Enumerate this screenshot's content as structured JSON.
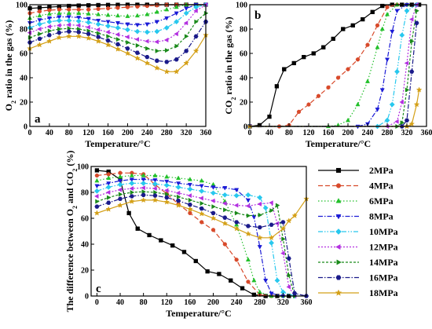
{
  "chart_data": [
    {
      "type": "line",
      "panel_label": "a",
      "xlabel": "Temperature/°C",
      "ylabel_parts": [
        "O",
        "2",
        " ratio in the gas  (%)"
      ],
      "xlim": [
        0,
        360
      ],
      "ylim": [
        0,
        100
      ],
      "xticks": [
        0,
        40,
        80,
        120,
        160,
        200,
        240,
        280,
        320,
        360
      ],
      "yticks": [
        0,
        20,
        40,
        60,
        80,
        100
      ],
      "x": [
        0,
        20,
        40,
        60,
        80,
        100,
        120,
        140,
        160,
        180,
        200,
        220,
        240,
        260,
        280,
        300,
        320,
        340,
        360
      ],
      "series": [
        {
          "name": "2MPa",
          "values": [
            97,
            97.5,
            98,
            98.5,
            99,
            99.3,
            99.5,
            99.7,
            99.8,
            99.9,
            100,
            100,
            100,
            100,
            100,
            100,
            100,
            100,
            100
          ]
        },
        {
          "name": "4MPa",
          "values": [
            93,
            94.5,
            95.5,
            96,
            96,
            96,
            96,
            96.5,
            97,
            97.5,
            98,
            98.5,
            99,
            99.5,
            100,
            100,
            100,
            100,
            100
          ]
        },
        {
          "name": "6MPa",
          "values": [
            89,
            91,
            92.5,
            93,
            93,
            93,
            92.5,
            92,
            91.5,
            91,
            90.5,
            91,
            92,
            94,
            96,
            98,
            100,
            100,
            100
          ]
        },
        {
          "name": "8MPa",
          "values": [
            85,
            87.5,
            89,
            90,
            90,
            89.5,
            88.5,
            87,
            86,
            85,
            84,
            83.5,
            84,
            86,
            89,
            93,
            97,
            100,
            100
          ]
        },
        {
          "name": "10MPa",
          "values": [
            81,
            84,
            86,
            87,
            87,
            86.5,
            85.5,
            84,
            82.5,
            81,
            79.5,
            78,
            77.5,
            78,
            81,
            86,
            93,
            98,
            100
          ]
        },
        {
          "name": "12MPa",
          "values": [
            77,
            80,
            82,
            83,
            83.5,
            83,
            81.5,
            79.5,
            77.5,
            75.5,
            73.5,
            71.5,
            70,
            69.5,
            71,
            76,
            85,
            95,
            100
          ]
        },
        {
          "name": "14MPa",
          "values": [
            73,
            76,
            78.5,
            80,
            80.5,
            80,
            78.5,
            76.5,
            74,
            71.5,
            69,
            66.5,
            64,
            62,
            62.5,
            66,
            74,
            86,
            93
          ]
        },
        {
          "name": "16MPa",
          "values": [
            69,
            72,
            75,
            77,
            78,
            77.5,
            76,
            73.5,
            70.5,
            67.5,
            64,
            60.5,
            57,
            54,
            53,
            55,
            62,
            74,
            86
          ]
        },
        {
          "name": "18MPa",
          "values": [
            64,
            67,
            70,
            73,
            74,
            74,
            72.5,
            70,
            67,
            63.5,
            60,
            56,
            52,
            48,
            45,
            45,
            52,
            62,
            75
          ]
        }
      ]
    },
    {
      "type": "line",
      "panel_label": "b",
      "xlabel": "Temperature/°C",
      "ylabel_parts": [
        "CO",
        "2",
        " ratio in the gas  (%)"
      ],
      "xlim": [
        0,
        360
      ],
      "ylim": [
        0,
        100
      ],
      "xticks": [
        0,
        40,
        80,
        120,
        160,
        200,
        240,
        280,
        320,
        360
      ],
      "yticks": [
        0,
        20,
        40,
        60,
        80,
        100
      ],
      "series": [
        {
          "name": "2MPa",
          "x": [
            0,
            20,
            40,
            55,
            70,
            90,
            110,
            130,
            150,
            170,
            190,
            210,
            230,
            250,
            270,
            290,
            310,
            330,
            345
          ],
          "values": [
            0,
            1,
            8,
            33,
            47,
            52,
            57,
            60,
            65,
            72,
            80,
            83,
            88,
            94,
            99,
            100,
            100,
            100,
            100
          ]
        },
        {
          "name": "4MPa",
          "x": [
            0,
            60,
            80,
            100,
            120,
            140,
            160,
            180,
            200,
            220,
            240,
            260,
            280,
            300,
            320,
            340
          ],
          "values": [
            0,
            0,
            1,
            12,
            18,
            25,
            32,
            40,
            47,
            55,
            67,
            83,
            98,
            100,
            100,
            100
          ]
        },
        {
          "name": "6MPa",
          "x": [
            0,
            160,
            180,
            200,
            220,
            240,
            260,
            270,
            280,
            300,
            320,
            340
          ],
          "values": [
            0,
            0,
            1,
            5,
            18,
            37,
            65,
            80,
            92,
            100,
            100,
            100
          ]
        },
        {
          "name": "8MPa",
          "x": [
            0,
            220,
            240,
            260,
            270,
            280,
            290,
            300,
            320,
            340
          ],
          "values": [
            0,
            0,
            2,
            14,
            30,
            55,
            78,
            95,
            100,
            100
          ]
        },
        {
          "name": "10MPa",
          "x": [
            0,
            260,
            280,
            290,
            300,
            310,
            320,
            340
          ],
          "values": [
            0,
            0,
            5,
            18,
            45,
            75,
            95,
            100
          ]
        },
        {
          "name": "12MPa",
          "x": [
            0,
            280,
            300,
            310,
            320,
            330,
            340
          ],
          "values": [
            0,
            0,
            4,
            20,
            52,
            88,
            100
          ]
        },
        {
          "name": "14MPa",
          "x": [
            0,
            300,
            310,
            320,
            330,
            340
          ],
          "values": [
            0,
            0,
            3,
            30,
            70,
            95
          ]
        },
        {
          "name": "16MPa",
          "x": [
            0,
            310,
            320,
            330,
            340
          ],
          "values": [
            0,
            0,
            5,
            45,
            85
          ]
        },
        {
          "name": "18MPa",
          "x": [
            0,
            320,
            330,
            340,
            345
          ],
          "values": [
            0,
            0,
            2,
            18,
            30
          ]
        }
      ]
    },
    {
      "type": "line",
      "panel_label": "c",
      "xlabel": "Temperature/°C",
      "ylabel_parts": [
        "The difference between O",
        "2",
        " and CO",
        "2",
        " (%)"
      ],
      "xlim": [
        -10,
        360
      ],
      "ylim": [
        0,
        100
      ],
      "xticks": [
        0,
        40,
        80,
        120,
        160,
        200,
        240,
        280,
        320,
        360
      ],
      "yticks": [
        0,
        20,
        40,
        60,
        80,
        100
      ],
      "series": [
        {
          "name": "2MPa",
          "x": [
            0,
            20,
            40,
            55,
            70,
            90,
            110,
            130,
            150,
            170,
            190,
            210,
            230,
            250,
            270,
            290,
            310,
            330
          ],
          "values": [
            97,
            96,
            90,
            64,
            52,
            47,
            43,
            39,
            34,
            27,
            19,
            17,
            12,
            6,
            1,
            0,
            0,
            0
          ]
        },
        {
          "name": "4MPa",
          "x": [
            0,
            20,
            40,
            60,
            80,
            100,
            120,
            140,
            160,
            180,
            200,
            220,
            240,
            260,
            280,
            300
          ],
          "values": [
            93,
            94,
            95,
            95,
            94,
            86,
            79,
            71,
            64,
            57,
            51,
            40,
            28,
            11,
            1,
            0
          ]
        },
        {
          "name": "6MPa",
          "x": [
            0,
            20,
            40,
            60,
            80,
            100,
            120,
            140,
            160,
            180,
            200,
            220,
            240,
            260,
            270,
            280,
            300,
            320
          ],
          "values": [
            89,
            91,
            92,
            93,
            93,
            93,
            92,
            91,
            90,
            89,
            86,
            73,
            55,
            28,
            12,
            3,
            0,
            0
          ]
        },
        {
          "name": "8MPa",
          "x": [
            0,
            20,
            40,
            60,
            80,
            100,
            120,
            140,
            160,
            180,
            200,
            220,
            240,
            260,
            270,
            280,
            290,
            300,
            320
          ],
          "values": [
            85,
            87,
            89,
            90,
            90,
            89.5,
            88.5,
            87,
            86,
            85,
            84,
            83.5,
            82,
            74,
            61,
            38,
            12,
            2,
            0
          ]
        },
        {
          "name": "10MPa",
          "x": [
            0,
            20,
            40,
            60,
            80,
            100,
            120,
            140,
            160,
            180,
            200,
            220,
            240,
            260,
            280,
            290,
            300,
            310,
            320,
            340
          ],
          "values": [
            81,
            84,
            86,
            87,
            87,
            86.5,
            85.5,
            84,
            82.5,
            81,
            79.5,
            78,
            77.5,
            78,
            76,
            68,
            41,
            12,
            3,
            0
          ]
        },
        {
          "name": "12MPa",
          "x": [
            0,
            20,
            40,
            60,
            80,
            100,
            120,
            140,
            160,
            180,
            200,
            220,
            240,
            260,
            280,
            300,
            310,
            320,
            330,
            340
          ],
          "values": [
            77,
            80,
            82,
            83,
            83.5,
            83,
            81.5,
            79.5,
            77.5,
            75.5,
            73.5,
            71.5,
            70,
            69.5,
            71,
            72,
            56,
            33,
            7,
            0
          ]
        },
        {
          "name": "14MPa",
          "x": [
            0,
            20,
            40,
            60,
            80,
            100,
            120,
            140,
            160,
            180,
            200,
            220,
            240,
            260,
            280,
            300,
            310,
            320,
            330,
            340
          ],
          "values": [
            73,
            76,
            78.5,
            80,
            80.5,
            80,
            78.5,
            76.5,
            74,
            71.5,
            69,
            66.5,
            64,
            62,
            62.5,
            66,
            70,
            44,
            16,
            0
          ]
        },
        {
          "name": "16MPa",
          "x": [
            0,
            20,
            40,
            60,
            80,
            100,
            120,
            140,
            160,
            180,
            200,
            220,
            240,
            260,
            280,
            300,
            320,
            330,
            340,
            360
          ],
          "values": [
            69,
            72,
            75,
            77,
            78,
            77.5,
            76,
            73.5,
            70.5,
            67.5,
            64,
            60.5,
            57,
            54,
            53,
            55,
            57,
            29,
            2,
            0
          ]
        },
        {
          "name": "18MPa",
          "x": [
            0,
            20,
            40,
            60,
            80,
            100,
            120,
            140,
            160,
            180,
            200,
            220,
            240,
            260,
            280,
            300,
            320,
            330,
            340,
            360
          ],
          "values": [
            64,
            67,
            70,
            73,
            74,
            74,
            72.5,
            70,
            67,
            63.5,
            60,
            56,
            52,
            48,
            45,
            45,
            52,
            58,
            62,
            75
          ]
        }
      ]
    }
  ],
  "legend": {
    "placement": "right",
    "entries": [
      "2MPa",
      "4MPa",
      "6MPa",
      "8MPa",
      "10MPa",
      "12MPa",
      "14MPa",
      "16MPa",
      "18MPa"
    ]
  },
  "series_styles": [
    {
      "name": "2MPa",
      "color": "#000000",
      "marker": "square",
      "dash": "solid"
    },
    {
      "name": "4MPa",
      "color": "#d84a2b",
      "marker": "circle",
      "dash": "dash"
    },
    {
      "name": "6MPa",
      "color": "#22c02a",
      "marker": "triangle-up",
      "dash": "dot"
    },
    {
      "name": "8MPa",
      "color": "#1b1bd6",
      "marker": "triangle-down",
      "dash": "dashdot"
    },
    {
      "name": "10MPa",
      "color": "#27c8ee",
      "marker": "diamond",
      "dash": "dashdotdot"
    },
    {
      "name": "12MPa",
      "color": "#b330e0",
      "marker": "triangle-left",
      "dash": "shortdot"
    },
    {
      "name": "14MPa",
      "color": "#1a8a1a",
      "marker": "triangle-right",
      "dash": "shortdash"
    },
    {
      "name": "16MPa",
      "color": "#1a1a8a",
      "marker": "hexagon",
      "dash": "dashdot"
    },
    {
      "name": "18MPa",
      "color": "#d4a017",
      "marker": "star",
      "dash": "solid"
    }
  ]
}
